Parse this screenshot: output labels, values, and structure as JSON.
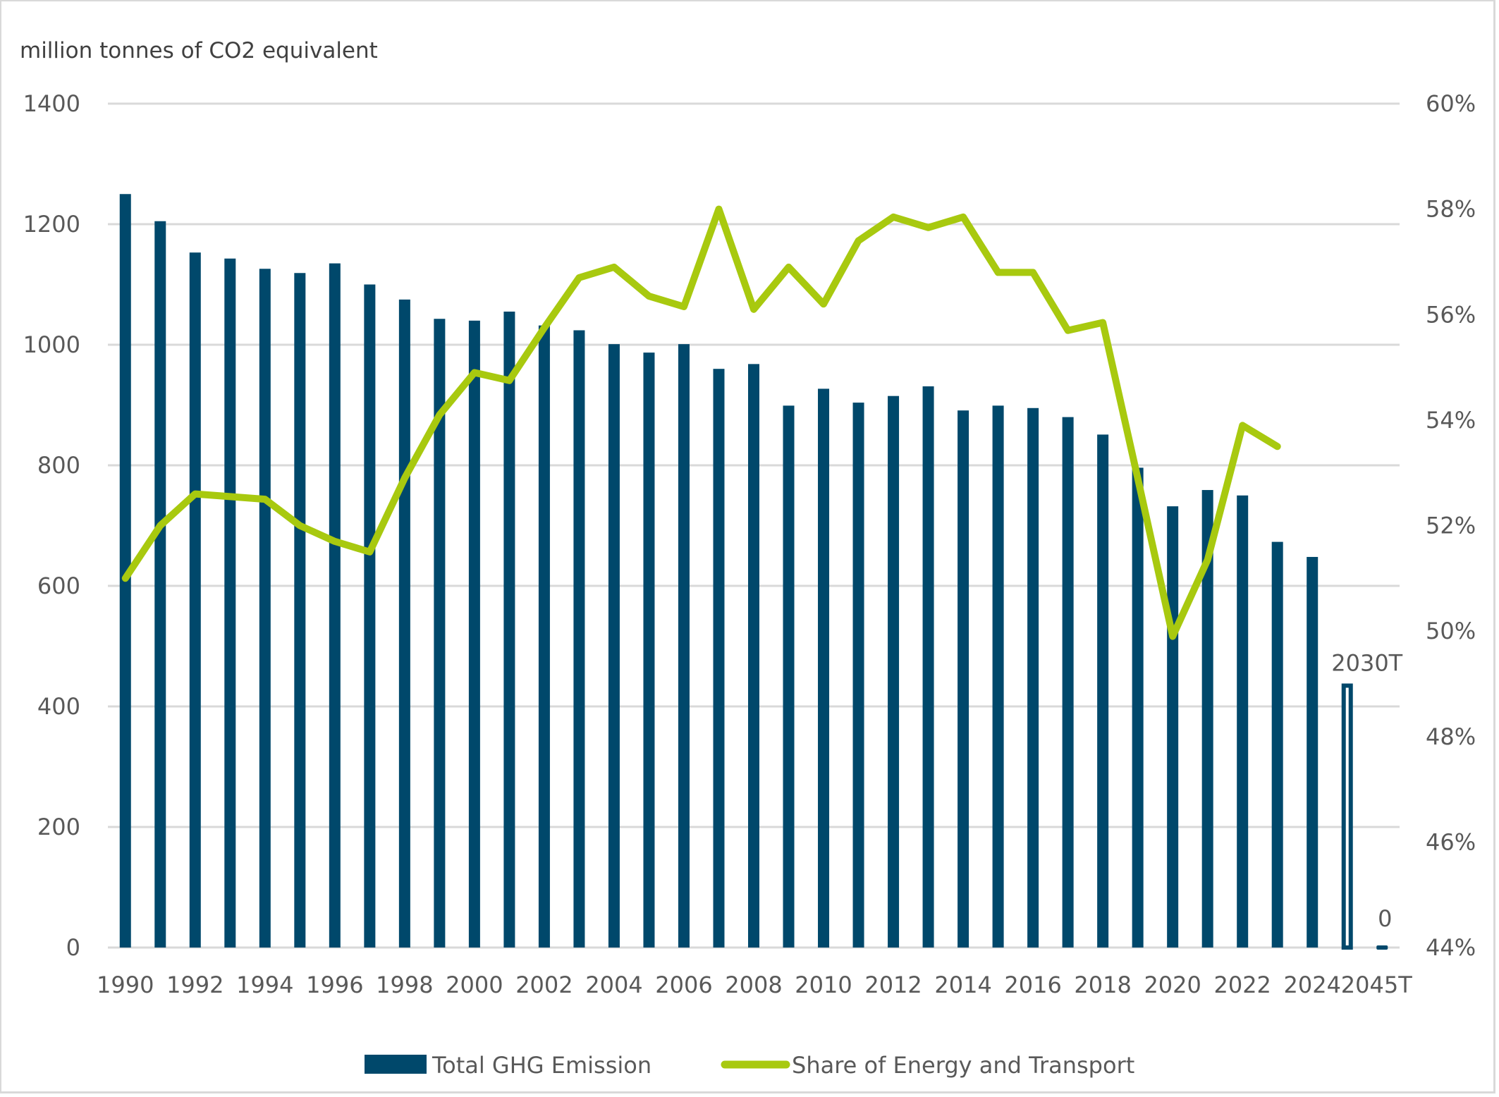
{
  "chart_data": {
    "type": "bar",
    "title": "",
    "ylabel": "million tonnes of CO2 equivalent",
    "y2label": "",
    "xlabel": "",
    "categories": [
      "1990",
      "1991",
      "1992",
      "1993",
      "1994",
      "1995",
      "1996",
      "1997",
      "1998",
      "1999",
      "2000",
      "2001",
      "2002",
      "2003",
      "2004",
      "2005",
      "2006",
      "2007",
      "2008",
      "2009",
      "2010",
      "2011",
      "2012",
      "2013",
      "2014",
      "2015",
      "2016",
      "2017",
      "2018",
      "2019",
      "2020",
      "2021",
      "2022",
      "2023",
      "2024",
      "2030T",
      "2045T"
    ],
    "x_tick_labels": [
      "1990",
      "1992",
      "1994",
      "1996",
      "1998",
      "2000",
      "2002",
      "2004",
      "2006",
      "2008",
      "2010",
      "2012",
      "2014",
      "2016",
      "2018",
      "2020",
      "2022",
      "2024",
      "2045T"
    ],
    "ylim": [
      0,
      1400
    ],
    "yticks": [
      0,
      200,
      400,
      600,
      800,
      1000,
      1200,
      1400
    ],
    "y2lim": [
      44,
      60
    ],
    "y2ticks": [
      "44%",
      "46%",
      "48%",
      "50%",
      "52%",
      "54%",
      "56%",
      "58%",
      "60%"
    ],
    "grid": true,
    "legend_position": "bottom",
    "series": [
      {
        "name": "Total GHG Emission",
        "type": "bar",
        "axis": "left",
        "color": "#00486B",
        "values": [
          1250,
          1205,
          1153,
          1143,
          1126,
          1119,
          1135,
          1100,
          1075,
          1043,
          1040,
          1055,
          1032,
          1024,
          1001,
          987,
          1001,
          960,
          968,
          899,
          927,
          904,
          915,
          931,
          891,
          899,
          895,
          880,
          851,
          796,
          732,
          759,
          750,
          673,
          648,
          438,
          0
        ],
        "target_style": {
          "2030T": "outline",
          "2045T": "outline"
        }
      },
      {
        "name": "Share of Energy and Transport",
        "type": "line",
        "axis": "right",
        "unit": "%",
        "color": "#A8C90F",
        "values": [
          51.0,
          52.0,
          52.6,
          52.55,
          52.5,
          52.0,
          51.7,
          51.5,
          52.9,
          54.1,
          54.9,
          54.75,
          55.75,
          56.7,
          56.9,
          56.35,
          56.15,
          58.0,
          56.1,
          56.9,
          56.2,
          57.4,
          57.85,
          57.65,
          57.85,
          56.8,
          56.8,
          55.7,
          55.85,
          52.9,
          49.9,
          51.35,
          53.9,
          53.5,
          null,
          null,
          null
        ]
      }
    ],
    "annotations": [
      {
        "category": "2030T",
        "text": "2030T"
      },
      {
        "category": "2045T",
        "text": "0"
      }
    ]
  }
}
